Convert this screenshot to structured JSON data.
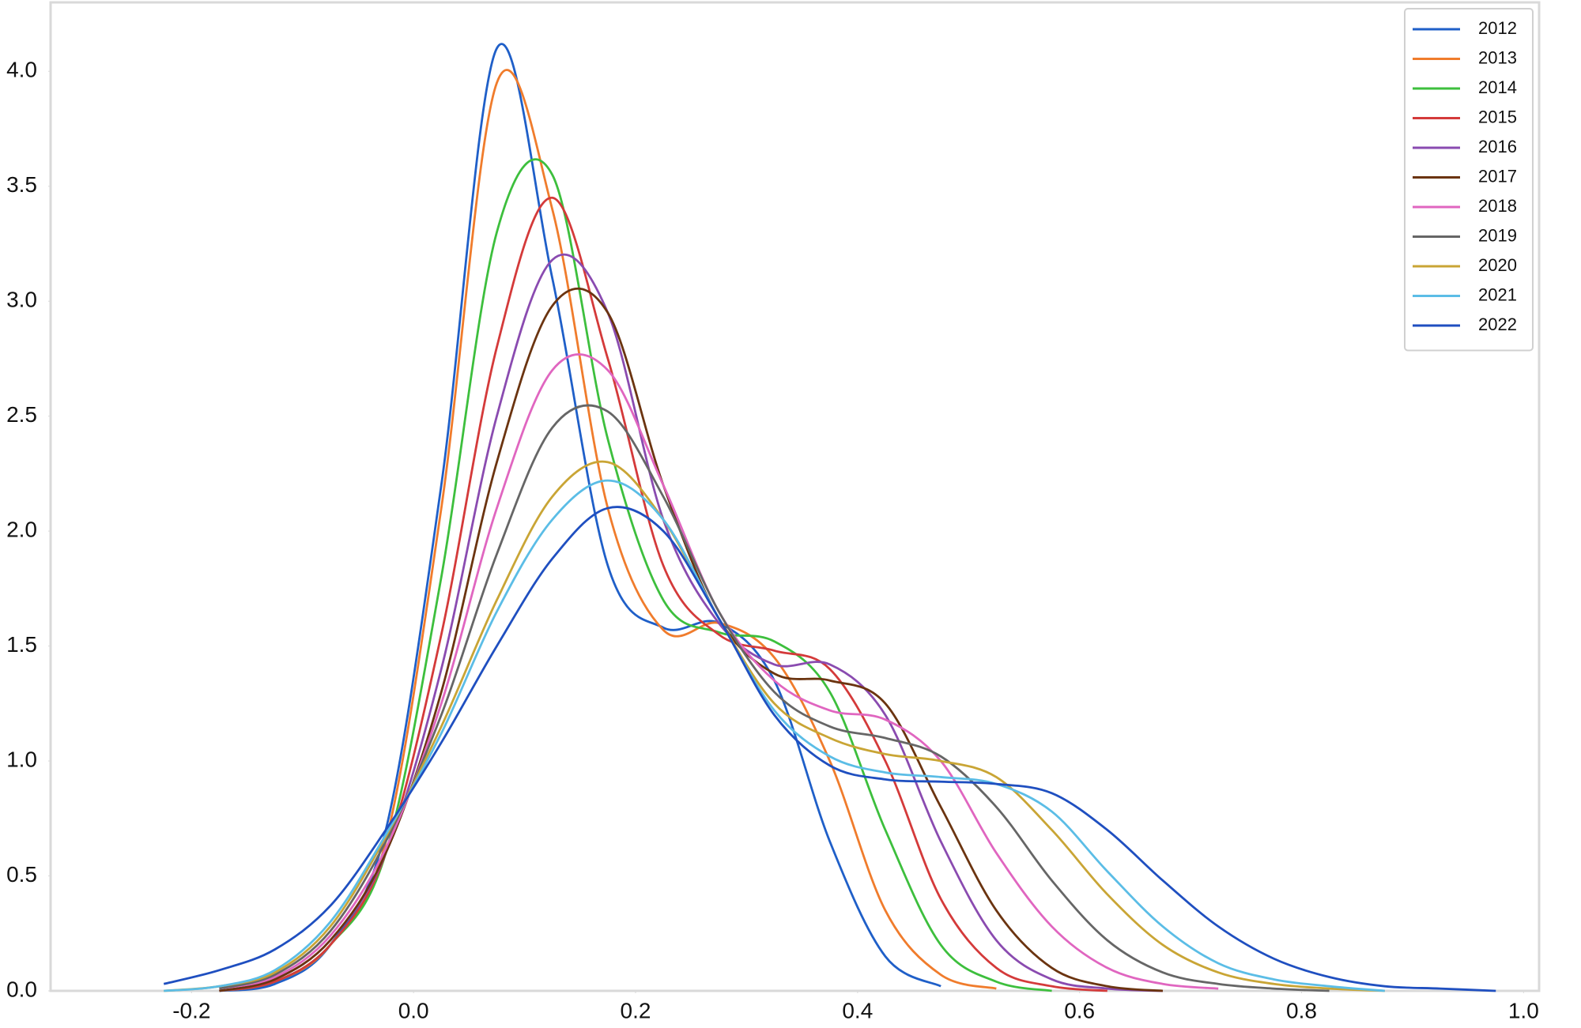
{
  "chart_data": {
    "type": "line",
    "legend": "upper right",
    "grid": false,
    "xlim": [
      -0.327,
      1.014
    ],
    "ylim": [
      0,
      4.3
    ],
    "xticks": [
      {
        "value": -0.2,
        "label": "-0.2"
      },
      {
        "value": 0,
        "label": "0.0"
      },
      0.2,
      0.4,
      0.6,
      0.8,
      {
        "value": 1,
        "label": "1.0"
      }
    ],
    "yticks": [
      {
        "value": 0,
        "label": "0.0"
      },
      0.5,
      {
        "value": 1,
        "label": "1.0"
      },
      1.5,
      {
        "value": 2,
        "label": "2.0"
      },
      2.5,
      {
        "value": 3,
        "label": "3.0"
      },
      3.5,
      {
        "value": 4,
        "label": "4.0"
      }
    ],
    "x": [
      -0.275,
      -0.225,
      -0.175,
      -0.125,
      -0.075,
      -0.025,
      0.025,
      0.075,
      0.125,
      0.175,
      0.225,
      0.275,
      0.325,
      0.375,
      0.425,
      0.475,
      0.525,
      0.575,
      0.625,
      0.675,
      0.725,
      0.775,
      0.825,
      0.875,
      0.925,
      0.975
    ],
    "series": [
      {
        "name": "2012",
        "color": "#1f5fc8",
        "values": [
          null,
          null,
          0.0,
          0.03,
          0.2,
          0.7,
          2.2,
          4.1,
          3.1,
          1.85,
          1.58,
          1.6,
          1.35,
          0.65,
          0.15,
          0.02,
          null,
          null,
          null,
          null,
          null,
          null,
          null,
          null,
          null,
          null
        ]
      },
      {
        "name": "2013",
        "color": "#f07c2c",
        "values": [
          null,
          null,
          0.0,
          0.04,
          0.2,
          0.65,
          2.1,
          3.95,
          3.4,
          2.1,
          1.57,
          1.6,
          1.45,
          1.0,
          0.35,
          0.07,
          0.01,
          null,
          null,
          null,
          null,
          null,
          null,
          null,
          null,
          null
        ]
      },
      {
        "name": "2014",
        "color": "#3dbf3d",
        "values": [
          null,
          null,
          0.0,
          0.04,
          0.2,
          0.6,
          1.8,
          3.3,
          3.55,
          2.4,
          1.7,
          1.56,
          1.52,
          1.3,
          0.7,
          0.2,
          0.04,
          0.0,
          null,
          null,
          null,
          null,
          null,
          null,
          null,
          null
        ]
      },
      {
        "name": "2015",
        "color": "#d43a3a",
        "values": [
          null,
          null,
          0.0,
          0.04,
          0.2,
          0.6,
          1.55,
          2.8,
          3.45,
          2.75,
          1.85,
          1.55,
          1.48,
          1.4,
          1.0,
          0.4,
          0.1,
          0.02,
          0.0,
          null,
          null,
          null,
          null,
          null,
          null,
          null
        ]
      },
      {
        "name": "2016",
        "color": "#8a4bb0",
        "values": [
          null,
          null,
          0.0,
          0.05,
          0.22,
          0.6,
          1.4,
          2.5,
          3.18,
          2.95,
          2.05,
          1.6,
          1.42,
          1.42,
          1.2,
          0.65,
          0.22,
          0.05,
          0.01,
          0.0,
          null,
          null,
          null,
          null,
          null,
          null
        ]
      },
      {
        "name": "2017",
        "color": "#6b3410",
        "values": [
          null,
          null,
          0.0,
          0.05,
          0.22,
          0.6,
          1.3,
          2.3,
          2.98,
          2.95,
          2.2,
          1.62,
          1.38,
          1.35,
          1.25,
          0.8,
          0.35,
          0.1,
          0.02,
          0.0,
          null,
          null,
          null,
          null,
          null,
          null
        ]
      },
      {
        "name": "2018",
        "color": "#e066c0",
        "values": [
          null,
          null,
          0.01,
          0.06,
          0.24,
          0.62,
          1.25,
          2.1,
          2.7,
          2.7,
          2.2,
          1.65,
          1.35,
          1.22,
          1.18,
          1.0,
          0.6,
          0.28,
          0.1,
          0.03,
          0.01,
          null,
          null,
          null,
          null,
          null
        ]
      },
      {
        "name": "2019",
        "color": "#666666",
        "values": [
          null,
          null,
          0.01,
          0.07,
          0.26,
          0.65,
          1.2,
          1.9,
          2.45,
          2.52,
          2.15,
          1.65,
          1.3,
          1.15,
          1.1,
          1.02,
          0.8,
          0.48,
          0.22,
          0.08,
          0.03,
          0.01,
          0.0,
          null,
          null,
          null
        ]
      },
      {
        "name": "2020",
        "color": "#c9a535",
        "values": [
          null,
          0.0,
          0.02,
          0.08,
          0.28,
          0.67,
          1.15,
          1.7,
          2.15,
          2.3,
          2.05,
          1.62,
          1.25,
          1.1,
          1.03,
          1.0,
          0.93,
          0.7,
          0.42,
          0.2,
          0.08,
          0.03,
          0.01,
          0.0,
          null,
          null
        ]
      },
      {
        "name": "2021",
        "color": "#5bbde6",
        "values": [
          null,
          0.0,
          0.02,
          0.09,
          0.3,
          0.68,
          1.12,
          1.65,
          2.05,
          2.22,
          2.05,
          1.62,
          1.22,
          1.02,
          0.95,
          0.93,
          0.9,
          0.78,
          0.52,
          0.28,
          0.12,
          0.05,
          0.02,
          0.0,
          null,
          null
        ]
      },
      {
        "name": "2022",
        "color": "#1f4fc0",
        "values": [
          null,
          0.03,
          0.09,
          0.18,
          0.37,
          0.7,
          1.08,
          1.5,
          1.88,
          2.1,
          2.0,
          1.62,
          1.2,
          0.98,
          0.92,
          0.91,
          0.9,
          0.86,
          0.7,
          0.48,
          0.28,
          0.14,
          0.06,
          0.02,
          0.01,
          0.0
        ]
      }
    ]
  }
}
